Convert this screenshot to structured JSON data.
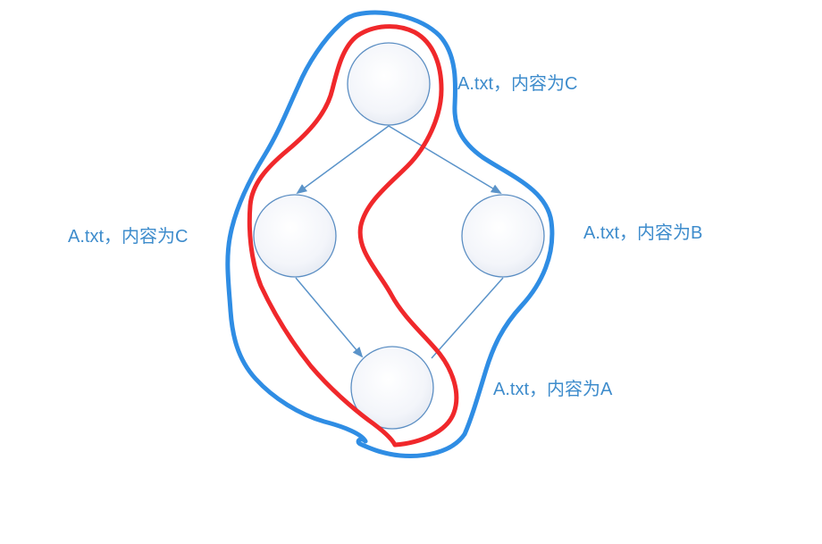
{
  "nodes": {
    "top": {
      "label": "A.txt，内容为C"
    },
    "left": {
      "label": "A.txt，内容为C"
    },
    "right": {
      "label": "A.txt，内容为B"
    },
    "bottom": {
      "label": "A.txt，内容为A"
    }
  },
  "colors": {
    "node_fill_center": "#ffffff",
    "node_fill_edge": "#e3e8f1",
    "node_stroke": "#5b8ec3",
    "edge": "#5a93c9",
    "label": "#3e8ccc",
    "outer_loop": "#2f8de4",
    "inner_loop": "#f0282b"
  }
}
